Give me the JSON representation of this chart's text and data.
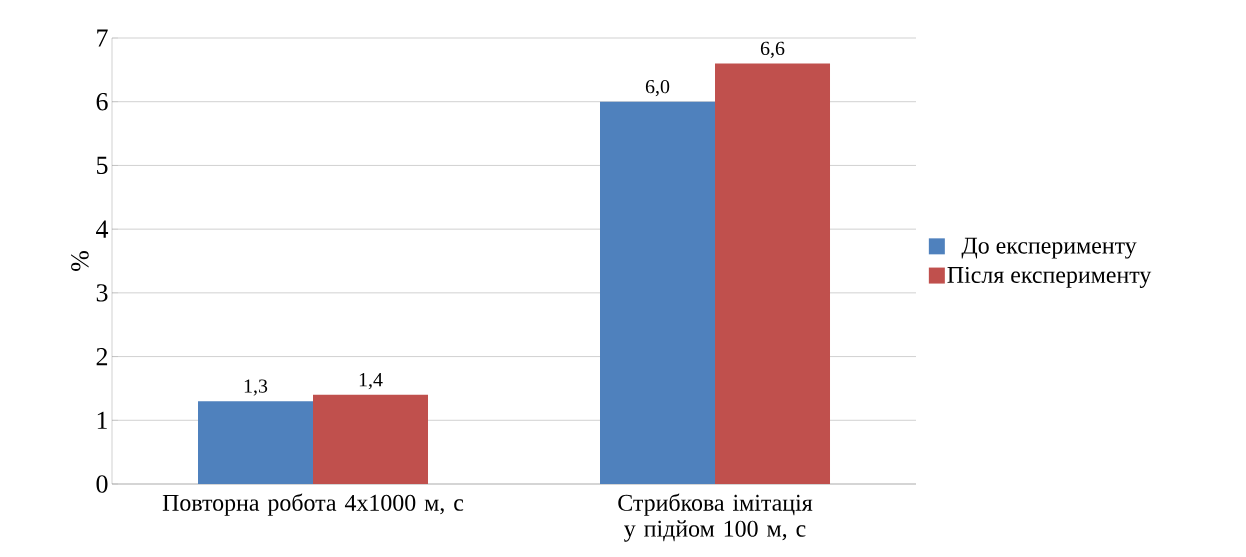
{
  "chart_data": {
    "type": "bar",
    "ylabel": "%",
    "categories": [
      "Повторна робота 4x1000 м, с",
      "Стрибкова імітація у підйом 100 м, с"
    ],
    "series": [
      {
        "name": "До експерименту",
        "color": "#4f81bd",
        "values": [
          1.3,
          6.0
        ],
        "value_labels": [
          "1,3",
          "6,0"
        ]
      },
      {
        "name": "Після експерименту",
        "color": "#c0504d",
        "values": [
          1.4,
          6.6
        ],
        "value_labels": [
          "1,4",
          "6,6"
        ]
      }
    ],
    "ylim": [
      0,
      7
    ],
    "yticks": [
      0,
      1,
      2,
      3,
      4,
      5,
      6,
      7
    ],
    "grid": "y",
    "legend": "right"
  }
}
